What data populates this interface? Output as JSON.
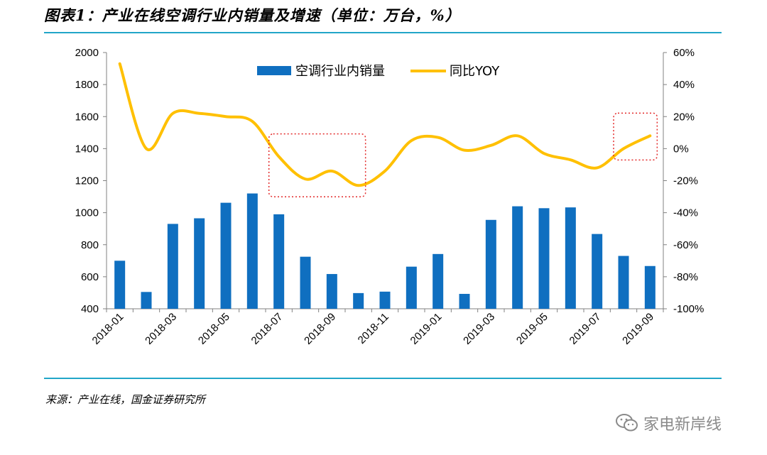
{
  "header": {
    "title": "图表1：产业在线空调行业内销量及增速（单位：万台，%）"
  },
  "footer": {
    "source": "来源：产业在线，国金证券研究所"
  },
  "watermark": {
    "text": "家电新岸线",
    "icon": "wechat-icon"
  },
  "colors": {
    "bar": "#0f6fc0",
    "line": "#ffc000",
    "rule": "#22a6c8",
    "highlight": "#e32a2a"
  },
  "chart_data": {
    "type": "bar",
    "categories": [
      "2018-01",
      "2018-02",
      "2018-03",
      "2018-04",
      "2018-05",
      "2018-06",
      "2018-07",
      "2018-08",
      "2018-09",
      "2018-10",
      "2018-11",
      "2018-12",
      "2019-01",
      "2019-02",
      "2019-03",
      "2019-04",
      "2019-05",
      "2019-06",
      "2019-07",
      "2019-08",
      "2019-09"
    ],
    "x_tick_labels": [
      "2018-01",
      "2018-03",
      "2018-05",
      "2018-07",
      "2018-09",
      "2018-11",
      "2019-01",
      "2019-03",
      "2019-05",
      "2019-07",
      "2019-09"
    ],
    "series": [
      {
        "name": "空调行业内销量",
        "type": "bar",
        "axis": "left",
        "values": [
          700,
          505,
          930,
          965,
          1062,
          1120,
          990,
          725,
          617,
          498,
          507,
          663,
          742,
          493,
          955,
          1040,
          1028,
          1033,
          867,
          730,
          667
        ]
      },
      {
        "name": "同比YOY",
        "type": "line",
        "axis": "right",
        "unit": "%",
        "values": [
          53,
          0,
          22,
          22,
          20,
          17,
          -5,
          -19,
          -14,
          -23,
          -14,
          5,
          7,
          -1,
          2,
          8,
          -3,
          -7,
          -12,
          0,
          8
        ]
      }
    ],
    "y_left": {
      "lim": [
        400,
        2000
      ],
      "ticks": [
        "2000",
        "1800",
        "1600",
        "1400",
        "1200",
        "1000",
        "800",
        "600",
        "400"
      ]
    },
    "y_right": {
      "lim": [
        -100,
        60
      ],
      "ticks": [
        "60%",
        "40%",
        "20%",
        "0%",
        "-20%",
        "-40%",
        "-60%",
        "-80%",
        "-100%"
      ]
    },
    "legend": {
      "position": "top-center"
    },
    "annotations": [
      {
        "type": "dotted-box",
        "from": "2018-07",
        "to": "2018-10"
      },
      {
        "type": "dotted-box",
        "from": "2019-08",
        "to": "2019-09"
      }
    ],
    "grid": false
  }
}
